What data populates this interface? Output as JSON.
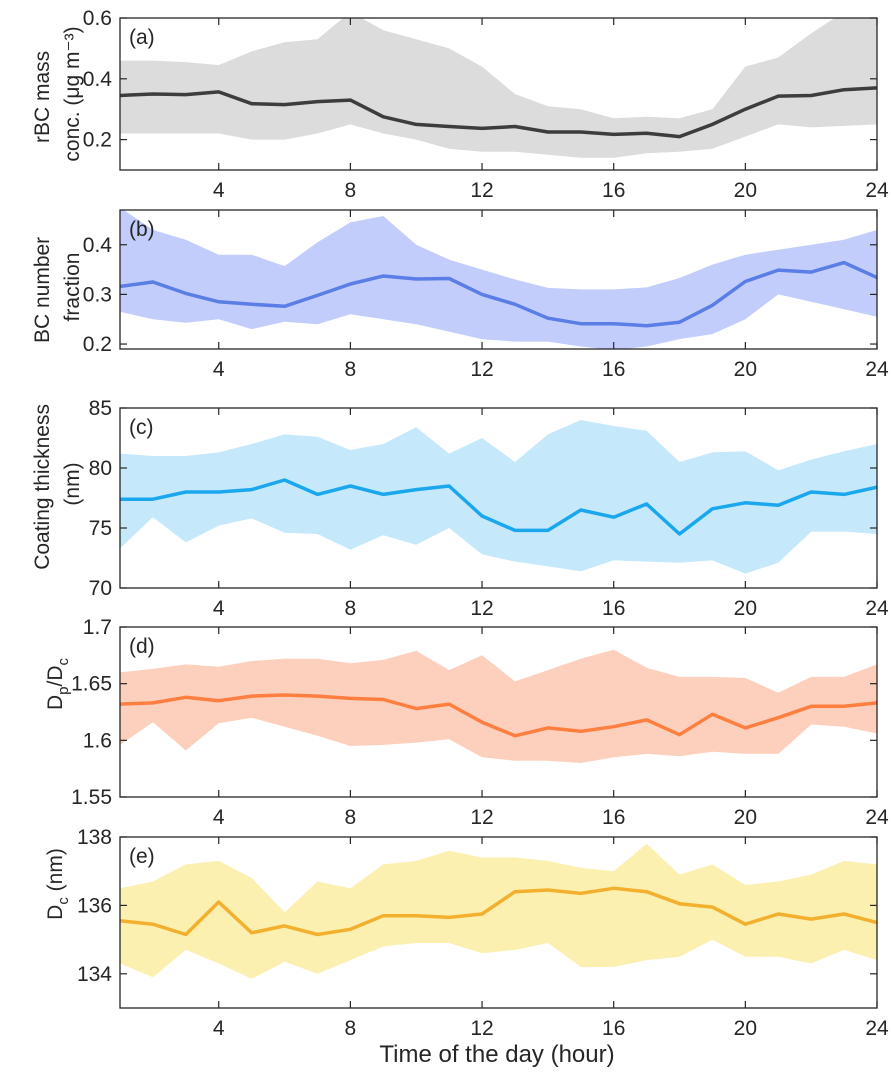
{
  "chart_data": [
    {
      "type": "line",
      "panel_label": "(a)",
      "ylabel": [
        "rBC mass",
        "conc. (μg m⁻³)"
      ],
      "xlim": [
        1,
        24
      ],
      "ylim": [
        0.1,
        0.6
      ],
      "yticks": [
        0.2,
        0.4,
        0.6
      ],
      "ytick_labels": [
        "0.2",
        "0.4",
        "0.6"
      ],
      "xticks": [
        4,
        8,
        12,
        16,
        20,
        24
      ],
      "xtick_labels": [
        "4",
        "8",
        "12",
        "16",
        "20",
        "24"
      ],
      "grid": false,
      "colors": {
        "line": "#3d3d3d",
        "band": "#dcdcdc"
      },
      "x": [
        1,
        2,
        3,
        4,
        5,
        6,
        7,
        8,
        9,
        10,
        11,
        12,
        13,
        14,
        15,
        16,
        17,
        18,
        19,
        20,
        21,
        22,
        23,
        24
      ],
      "series": [
        {
          "role": "mean",
          "values": [
            0.345,
            0.35,
            0.348,
            0.357,
            0.318,
            0.315,
            0.325,
            0.33,
            0.275,
            0.25,
            0.243,
            0.237,
            0.243,
            0.225,
            0.225,
            0.217,
            0.221,
            0.21,
            0.25,
            0.3,
            0.343,
            0.345,
            0.364,
            0.37
          ]
        },
        {
          "role": "upper",
          "values": [
            0.46,
            0.46,
            0.455,
            0.445,
            0.49,
            0.52,
            0.53,
            0.62,
            0.56,
            0.53,
            0.5,
            0.44,
            0.35,
            0.31,
            0.3,
            0.27,
            0.275,
            0.27,
            0.3,
            0.44,
            0.47,
            0.55,
            0.62,
            0.63
          ]
        },
        {
          "role": "lower",
          "values": [
            0.22,
            0.22,
            0.22,
            0.22,
            0.2,
            0.2,
            0.22,
            0.25,
            0.22,
            0.2,
            0.17,
            0.16,
            0.16,
            0.15,
            0.14,
            0.14,
            0.155,
            0.16,
            0.17,
            0.21,
            0.25,
            0.24,
            0.245,
            0.25
          ]
        }
      ]
    },
    {
      "type": "line",
      "panel_label": "(b)",
      "ylabel": [
        "BC number",
        "fraction"
      ],
      "xlim": [
        1,
        24
      ],
      "ylim": [
        0.19,
        0.47
      ],
      "yticks": [
        0.2,
        0.3,
        0.4
      ],
      "ytick_labels": [
        "0.2",
        "0.3",
        "0.4"
      ],
      "xticks": [
        4,
        8,
        12,
        16,
        20,
        24
      ],
      "xtick_labels": [
        "4",
        "8",
        "12",
        "16",
        "20",
        "24"
      ],
      "grid": false,
      "colors": {
        "line": "#5a7de6",
        "band": "#c2cdfb"
      },
      "x": [
        1,
        2,
        3,
        4,
        5,
        6,
        7,
        8,
        9,
        10,
        11,
        12,
        13,
        14,
        15,
        16,
        17,
        18,
        19,
        20,
        21,
        22,
        23,
        24
      ],
      "series": [
        {
          "role": "mean",
          "values": [
            0.316,
            0.325,
            0.302,
            0.285,
            0.28,
            0.276,
            0.298,
            0.321,
            0.337,
            0.331,
            0.332,
            0.3,
            0.28,
            0.252,
            0.241,
            0.241,
            0.237,
            0.244,
            0.278,
            0.326,
            0.349,
            0.345,
            0.364,
            0.334
          ]
        },
        {
          "role": "upper",
          "values": [
            0.475,
            0.43,
            0.41,
            0.38,
            0.38,
            0.357,
            0.405,
            0.445,
            0.458,
            0.4,
            0.37,
            0.35,
            0.33,
            0.313,
            0.31,
            0.31,
            0.314,
            0.333,
            0.36,
            0.38,
            0.39,
            0.4,
            0.41,
            0.43
          ]
        },
        {
          "role": "lower",
          "values": [
            0.265,
            0.25,
            0.243,
            0.25,
            0.23,
            0.245,
            0.24,
            0.26,
            0.25,
            0.24,
            0.225,
            0.21,
            0.205,
            0.205,
            0.195,
            0.188,
            0.195,
            0.21,
            0.22,
            0.25,
            0.3,
            0.285,
            0.27,
            0.255
          ]
        }
      ]
    },
    {
      "type": "line",
      "panel_label": "(c)",
      "ylabel": [
        "Coating thickness",
        "(nm)"
      ],
      "xlim": [
        1,
        24
      ],
      "ylim": [
        70,
        85
      ],
      "yticks": [
        70,
        75,
        80,
        85
      ],
      "ytick_labels": [
        "70",
        "75",
        "80",
        "85"
      ],
      "xticks": [
        4,
        8,
        12,
        16,
        20,
        24
      ],
      "xtick_labels": [
        "4",
        "8",
        "12",
        "16",
        "20",
        "24"
      ],
      "grid": false,
      "colors": {
        "line": "#1aa7ee",
        "band": "#c5e9fb"
      },
      "x": [
        1,
        2,
        3,
        4,
        5,
        6,
        7,
        8,
        9,
        10,
        11,
        12,
        13,
        14,
        15,
        16,
        17,
        18,
        19,
        20,
        21,
        22,
        23,
        24
      ],
      "series": [
        {
          "role": "mean",
          "values": [
            77.4,
            77.4,
            78.0,
            78.0,
            78.2,
            79.0,
            77.8,
            78.5,
            77.8,
            78.2,
            78.5,
            76.0,
            74.8,
            74.8,
            76.5,
            75.9,
            77.0,
            74.5,
            76.6,
            77.1,
            76.9,
            78.0,
            77.8,
            78.4
          ]
        },
        {
          "role": "upper",
          "values": [
            81.2,
            81.0,
            81.0,
            81.3,
            82.0,
            82.8,
            82.6,
            81.5,
            82.0,
            83.4,
            81.2,
            82.5,
            80.5,
            82.8,
            84.0,
            83.5,
            83.1,
            80.5,
            81.3,
            81.4,
            79.8,
            80.7,
            81.4,
            82.0
          ]
        },
        {
          "role": "lower",
          "values": [
            73.3,
            75.9,
            73.8,
            75.2,
            75.8,
            74.6,
            74.5,
            73.2,
            74.4,
            73.6,
            75.0,
            72.8,
            72.2,
            71.8,
            71.4,
            72.3,
            72.2,
            72.1,
            72.3,
            71.2,
            72.1,
            74.7,
            74.7,
            74.5
          ]
        }
      ]
    },
    {
      "type": "line",
      "panel_label": "(d)",
      "ylabel_main": "D",
      "ylabel_sub1": "p",
      "ylabel_mid": "/D",
      "ylabel_sub2": "c",
      "xlim": [
        1,
        24
      ],
      "ylim": [
        1.55,
        1.7
      ],
      "yticks": [
        1.55,
        1.6,
        1.65,
        1.7
      ],
      "ytick_labels": [
        "1.55",
        "1.6",
        "1.65",
        "1.7"
      ],
      "xticks": [
        4,
        8,
        12,
        16,
        20,
        24
      ],
      "xtick_labels": [
        "4",
        "8",
        "12",
        "16",
        "20",
        "24"
      ],
      "grid": false,
      "colors": {
        "line": "#ff7f40",
        "band": "#fdd0bd"
      },
      "x": [
        1,
        2,
        3,
        4,
        5,
        6,
        7,
        8,
        9,
        10,
        11,
        12,
        13,
        14,
        15,
        16,
        17,
        18,
        19,
        20,
        21,
        22,
        23,
        24
      ],
      "series": [
        {
          "role": "mean",
          "values": [
            1.632,
            1.633,
            1.638,
            1.635,
            1.639,
            1.64,
            1.639,
            1.637,
            1.636,
            1.628,
            1.632,
            1.616,
            1.604,
            1.611,
            1.608,
            1.612,
            1.618,
            1.605,
            1.623,
            1.611,
            1.62,
            1.63,
            1.63,
            1.633
          ]
        },
        {
          "role": "upper",
          "values": [
            1.66,
            1.663,
            1.667,
            1.665,
            1.67,
            1.672,
            1.672,
            1.668,
            1.671,
            1.679,
            1.662,
            1.675,
            1.652,
            1.662,
            1.672,
            1.68,
            1.664,
            1.656,
            1.656,
            1.655,
            1.642,
            1.656,
            1.656,
            1.667
          ]
        },
        {
          "role": "lower",
          "values": [
            1.596,
            1.616,
            1.591,
            1.615,
            1.62,
            1.612,
            1.604,
            1.595,
            1.596,
            1.598,
            1.601,
            1.585,
            1.582,
            1.582,
            1.58,
            1.585,
            1.588,
            1.586,
            1.59,
            1.588,
            1.588,
            1.614,
            1.612,
            1.606
          ]
        }
      ]
    },
    {
      "type": "line",
      "panel_label": "(e)",
      "ylabel_main": "D",
      "ylabel_sub1": "c",
      "ylabel_rest": " (nm)",
      "xlim": [
        1,
        24
      ],
      "ylim": [
        133,
        138
      ],
      "yticks": [
        134,
        136,
        138
      ],
      "ytick_labels": [
        "134",
        "136",
        "138"
      ],
      "xticks": [
        4,
        8,
        12,
        16,
        20,
        24
      ],
      "xtick_labels": [
        "4",
        "8",
        "12",
        "16",
        "20",
        "24"
      ],
      "xlabel": "Time of the day (hour)",
      "grid": false,
      "colors": {
        "line": "#f3b02e",
        "band": "#fcf0b0"
      },
      "x": [
        1,
        2,
        3,
        4,
        5,
        6,
        7,
        8,
        9,
        10,
        11,
        12,
        13,
        14,
        15,
        16,
        17,
        18,
        19,
        20,
        21,
        22,
        23,
        24
      ],
      "series": [
        {
          "role": "mean",
          "values": [
            135.55,
            135.45,
            135.15,
            136.1,
            135.2,
            135.4,
            135.15,
            135.3,
            135.7,
            135.7,
            135.65,
            135.75,
            136.4,
            136.45,
            136.35,
            136.5,
            136.4,
            136.05,
            135.95,
            135.45,
            135.75,
            135.6,
            135.75,
            135.5
          ]
        },
        {
          "role": "upper",
          "values": [
            136.5,
            136.7,
            137.2,
            137.3,
            136.8,
            135.8,
            136.7,
            136.5,
            137.2,
            137.3,
            137.6,
            137.4,
            137.4,
            137.3,
            137.1,
            137.0,
            137.8,
            136.9,
            137.2,
            136.6,
            136.7,
            136.9,
            137.3,
            137.2
          ]
        },
        {
          "role": "lower",
          "values": [
            134.3,
            133.9,
            134.7,
            134.3,
            133.85,
            134.35,
            134.0,
            134.4,
            134.8,
            134.9,
            134.9,
            134.6,
            134.7,
            134.9,
            134.2,
            134.2,
            134.4,
            134.5,
            135.0,
            134.5,
            134.5,
            134.3,
            134.7,
            134.4
          ]
        }
      ]
    }
  ]
}
